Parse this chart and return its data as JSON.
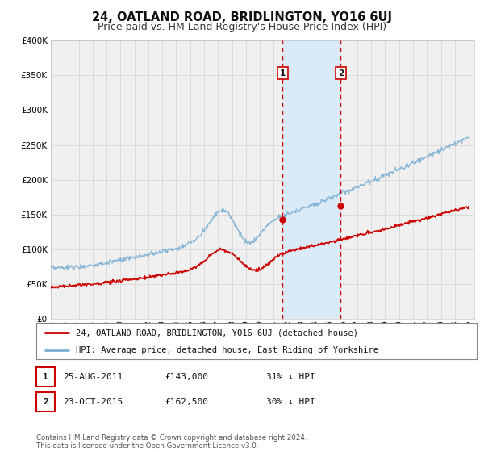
{
  "title": "24, OATLAND ROAD, BRIDLINGTON, YO16 6UJ",
  "subtitle": "Price paid vs. HM Land Registry's House Price Index (HPI)",
  "ylim": [
    0,
    400000
  ],
  "yticks": [
    0,
    50000,
    100000,
    150000,
    200000,
    250000,
    300000,
    350000,
    400000
  ],
  "background_color": "#ffffff",
  "plot_bg_color": "#f0f0f0",
  "grid_color": "#d8d8d8",
  "hpi_color": "#7bafd4",
  "price_color": "#cc0000",
  "marker1_date_num": 2011.644,
  "marker2_date_num": 2015.806,
  "marker1_price": 143000,
  "marker2_price": 162500,
  "shade_color": "#daeaf7",
  "legend_entry1": "24, OATLAND ROAD, BRIDLINGTON, YO16 6UJ (detached house)",
  "legend_entry2": "HPI: Average price, detached house, East Riding of Yorkshire",
  "table_row1_num": "1",
  "table_row1_date": "25-AUG-2011",
  "table_row1_price": "£143,000",
  "table_row1_hpi": "31% ↓ HPI",
  "table_row2_num": "2",
  "table_row2_date": "23-OCT-2015",
  "table_row2_price": "£162,500",
  "table_row2_hpi": "30% ↓ HPI",
  "footnote": "Contains HM Land Registry data © Crown copyright and database right 2024.\nThis data is licensed under the Open Government Licence v3.0.",
  "title_fontsize": 10.5,
  "subtitle_fontsize": 9
}
